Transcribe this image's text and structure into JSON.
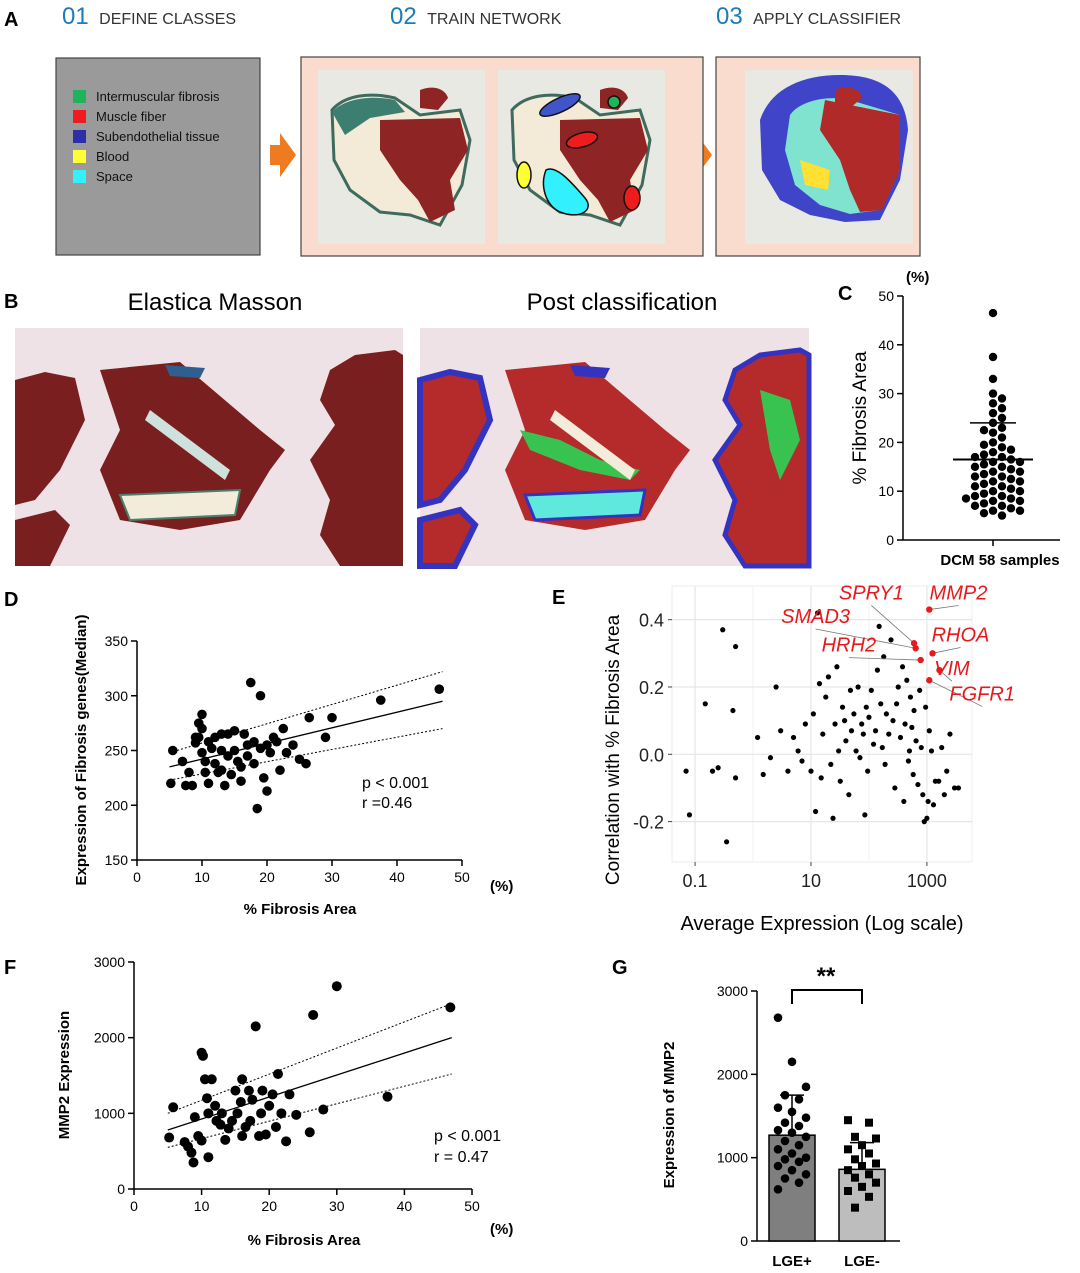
{
  "figure": {
    "panelA": {
      "letter": "A",
      "steps": [
        {
          "num": "01",
          "label": "DEFINE CLASSES"
        },
        {
          "num": "02",
          "label": "TRAIN NETWORK"
        },
        {
          "num": "03",
          "label": "APPLY CLASSIFIER"
        }
      ],
      "legend": [
        {
          "label": "Intermuscular fibrosis",
          "color": "#1fb35a"
        },
        {
          "label": "Muscle fiber",
          "color": "#ee1c1c"
        },
        {
          "label": "Subendothelial tissue",
          "color": "#2e2ea6"
        },
        {
          "label": "Blood",
          "color": "#ffff33"
        },
        {
          "label": "Space",
          "color": "#33f0ff"
        }
      ],
      "accent": "#1a7bbd"
    },
    "panelB": {
      "letter": "B",
      "left_title": "Elastica Masson",
      "right_title": "Post classification"
    },
    "panelC": {
      "letter": "C"
    },
    "panelD": {
      "letter": "D"
    },
    "panelE": {
      "letter": "E"
    },
    "panelF": {
      "letter": "F"
    },
    "panelG": {
      "letter": "G"
    }
  },
  "chart_data": [
    {
      "id": "C",
      "type": "scatter",
      "title": "",
      "ylabel": "% Fibrosis Area",
      "xlabel": "DCM 58 samples",
      "unit": "(%)",
      "ylim": [
        0,
        50
      ],
      "yticks": [
        0,
        10,
        20,
        30,
        40,
        50
      ],
      "mean": 16.5,
      "sd_upper": 24,
      "values": [
        46.5,
        37.5,
        33,
        30,
        29,
        28,
        27,
        26,
        25,
        24,
        23,
        22.5,
        22,
        21,
        20,
        19.5,
        19,
        18.5,
        18,
        17.5,
        17,
        17,
        16.5,
        16,
        16,
        15.5,
        15,
        15,
        14.5,
        14,
        14,
        13.5,
        13,
        13,
        12.5,
        12,
        12,
        11.5,
        11,
        11,
        10.5,
        10,
        10,
        9.5,
        9,
        9,
        8.5,
        8.5,
        8,
        8,
        7.5,
        7,
        7,
        6.5,
        6,
        6,
        5.5,
        5
      ]
    },
    {
      "id": "D",
      "type": "scatter",
      "xlabel": "% Fibrosis Area",
      "ylabel": "Expression of Fibrosis genes(Median)",
      "unit": "(%)",
      "xlim": [
        0,
        50
      ],
      "ylim": [
        150,
        350
      ],
      "xticks": [
        0,
        10,
        20,
        30,
        40,
        50
      ],
      "yticks": [
        150,
        200,
        250,
        300,
        350
      ],
      "annotations": [
        "p < 0.001",
        "r  =0.46"
      ],
      "fit": {
        "x": [
          5,
          47
        ],
        "y": [
          235,
          295
        ]
      },
      "ci_upper": {
        "x": [
          5,
          47
        ],
        "y": [
          248,
          322
        ]
      },
      "ci_lower": {
        "x": [
          5,
          47
        ],
        "y": [
          223,
          270
        ]
      },
      "points": [
        [
          5.5,
          250
        ],
        [
          5.2,
          220
        ],
        [
          7,
          240
        ],
        [
          7.5,
          218
        ],
        [
          8,
          230
        ],
        [
          8.5,
          218
        ],
        [
          9,
          257
        ],
        [
          9,
          262
        ],
        [
          9.5,
          275
        ],
        [
          9.5,
          262
        ],
        [
          10,
          283
        ],
        [
          10,
          270
        ],
        [
          10,
          248
        ],
        [
          10.5,
          240
        ],
        [
          10.5,
          230
        ],
        [
          11,
          220
        ],
        [
          11,
          258
        ],
        [
          11.5,
          252
        ],
        [
          12,
          262
        ],
        [
          12,
          238
        ],
        [
          12.5,
          230
        ],
        [
          13,
          265
        ],
        [
          13,
          250
        ],
        [
          13,
          232
        ],
        [
          13.5,
          218
        ],
        [
          14,
          265
        ],
        [
          14,
          245
        ],
        [
          14.5,
          228
        ],
        [
          15,
          268
        ],
        [
          15,
          250
        ],
        [
          15.5,
          240
        ],
        [
          16,
          235
        ],
        [
          16,
          222
        ],
        [
          16.5,
          265
        ],
        [
          17,
          255
        ],
        [
          17,
          245
        ],
        [
          17.5,
          312
        ],
        [
          18,
          258
        ],
        [
          18,
          238
        ],
        [
          18.5,
          197
        ],
        [
          19,
          300
        ],
        [
          19,
          252
        ],
        [
          19.5,
          225
        ],
        [
          20,
          213
        ],
        [
          20,
          255
        ],
        [
          20.5,
          248
        ],
        [
          21,
          262
        ],
        [
          21.5,
          258
        ],
        [
          22,
          232
        ],
        [
          22.5,
          270
        ],
        [
          23,
          248
        ],
        [
          24,
          255
        ],
        [
          25,
          242
        ],
        [
          26,
          238
        ],
        [
          26.5,
          280
        ],
        [
          29,
          262
        ],
        [
          30,
          280
        ],
        [
          37.5,
          296
        ],
        [
          46.5,
          306
        ]
      ]
    },
    {
      "id": "E",
      "type": "scatter",
      "xlabel": "Average Expression (Log scale)",
      "ylabel": "Correlation with % Fibrosis Area",
      "xscale": "log",
      "xlim": [
        0.04,
        6000
      ],
      "ylim": [
        -0.32,
        0.5
      ],
      "xticks": [
        0.1,
        10,
        1000
      ],
      "xtick_labels": [
        "0.1",
        "10",
        "1000"
      ],
      "yticks": [
        -0.2,
        0,
        0.2,
        0.4
      ],
      "ytick_labels": [
        "-0.2",
        "0.0",
        "0.2",
        "0.4"
      ],
      "highlight_color": "#e8191c",
      "highlight": [
        {
          "gene": "SPRY1",
          "x": 600,
          "y": 0.33,
          "label_x": 110,
          "label_y": 0.46
        },
        {
          "gene": "MMP2",
          "x": 1100,
          "y": 0.43,
          "label_x": 3500,
          "label_y": 0.46
        },
        {
          "gene": "SMAD3",
          "x": 640,
          "y": 0.315,
          "label_x": 12,
          "label_y": 0.39
        },
        {
          "gene": "RHOA",
          "x": 1250,
          "y": 0.3,
          "label_x": 3800,
          "label_y": 0.335
        },
        {
          "gene": "HRH2",
          "x": 780,
          "y": 0.28,
          "label_x": 45,
          "label_y": 0.305
        },
        {
          "gene": "VIM",
          "x": 1650,
          "y": 0.25,
          "label_x": 2700,
          "label_y": 0.235
        },
        {
          "gene": "FGFR1",
          "x": 1100,
          "y": 0.22,
          "label_x": 9000,
          "label_y": 0.16
        }
      ],
      "points": [
        [
          0.07,
          -0.05
        ],
        [
          0.08,
          -0.18
        ],
        [
          0.15,
          0.15
        ],
        [
          0.2,
          -0.05
        ],
        [
          0.25,
          -0.04
        ],
        [
          0.3,
          0.37
        ],
        [
          0.35,
          -0.26
        ],
        [
          0.45,
          0.13
        ],
        [
          0.5,
          -0.07
        ],
        [
          0.5,
          0.32
        ],
        [
          1.2,
          0.05
        ],
        [
          1.5,
          -0.06
        ],
        [
          2,
          -0.01
        ],
        [
          2.5,
          0.2
        ],
        [
          3,
          0.07
        ],
        [
          4,
          -0.05
        ],
        [
          5,
          0.05
        ],
        [
          6,
          0.01
        ],
        [
          7,
          -0.02
        ],
        [
          8,
          0.09
        ],
        [
          10,
          -0.05
        ],
        [
          11,
          0.12
        ],
        [
          12,
          -0.17
        ],
        [
          13,
          0.42
        ],
        [
          14,
          0.21
        ],
        [
          15,
          -0.07
        ],
        [
          16,
          0.06
        ],
        [
          18,
          0.17
        ],
        [
          20,
          0.23
        ],
        [
          22,
          -0.03
        ],
        [
          24,
          -0.19
        ],
        [
          26,
          0.09
        ],
        [
          28,
          0.26
        ],
        [
          30,
          0.01
        ],
        [
          32,
          -0.08
        ],
        [
          35,
          0.14
        ],
        [
          38,
          0.1
        ],
        [
          40,
          0.04
        ],
        [
          45,
          -0.12
        ],
        [
          48,
          0.19
        ],
        [
          50,
          0.07
        ],
        [
          55,
          0.12
        ],
        [
          60,
          0.01
        ],
        [
          65,
          0.2
        ],
        [
          70,
          -0.01
        ],
        [
          75,
          0.09
        ],
        [
          80,
          0.06
        ],
        [
          85,
          -0.18
        ],
        [
          90,
          0.14
        ],
        [
          95,
          -0.05
        ],
        [
          100,
          0.11
        ],
        [
          110,
          0.19
        ],
        [
          120,
          0.03
        ],
        [
          130,
          0.07
        ],
        [
          140,
          0.25
        ],
        [
          150,
          0.38
        ],
        [
          160,
          0.15
        ],
        [
          170,
          0.02
        ],
        [
          180,
          0.29
        ],
        [
          190,
          -0.03
        ],
        [
          200,
          0.12
        ],
        [
          220,
          0.06
        ],
        [
          240,
          0.34
        ],
        [
          260,
          0.1
        ],
        [
          280,
          -0.1
        ],
        [
          300,
          0.15
        ],
        [
          320,
          0.2
        ],
        [
          350,
          0.05
        ],
        [
          380,
          0.26
        ],
        [
          400,
          -0.14
        ],
        [
          420,
          0.09
        ],
        [
          450,
          0.22
        ],
        [
          480,
          -0.02
        ],
        [
          500,
          0.01
        ],
        [
          520,
          0.17
        ],
        [
          550,
          0.08
        ],
        [
          580,
          -0.06
        ],
        [
          600,
          0.13
        ],
        [
          650,
          0.04
        ],
        [
          700,
          -0.09
        ],
        [
          750,
          0.19
        ],
        [
          800,
          0.02
        ],
        [
          850,
          -0.12
        ],
        [
          900,
          -0.2
        ],
        [
          950,
          0.14
        ],
        [
          1000,
          -0.19
        ],
        [
          1050,
          -0.14
        ],
        [
          1100,
          0.07
        ],
        [
          1200,
          0.01
        ],
        [
          1300,
          -0.15
        ],
        [
          1400,
          -0.08
        ],
        [
          1600,
          -0.08
        ],
        [
          1800,
          0.02
        ],
        [
          2000,
          -0.12
        ],
        [
          2200,
          -0.05
        ],
        [
          2500,
          0.06
        ],
        [
          3000,
          -0.1
        ],
        [
          3500,
          -0.1
        ]
      ]
    },
    {
      "id": "F",
      "type": "scatter",
      "xlabel": "% Fibrosis Area",
      "ylabel": "MMP2 Expression",
      "unit": "(%)",
      "xlim": [
        0,
        50
      ],
      "ylim": [
        0,
        3000
      ],
      "xticks": [
        0,
        10,
        20,
        30,
        40,
        50
      ],
      "yticks": [
        0,
        1000,
        2000,
        3000
      ],
      "annotations": [
        "p < 0.001",
        "r  = 0.47"
      ],
      "fit": {
        "x": [
          5,
          47
        ],
        "y": [
          780,
          2000
        ]
      },
      "ci_upper": {
        "x": [
          5,
          47
        ],
        "y": [
          1000,
          2450
        ]
      },
      "ci_lower": {
        "x": [
          5,
          47
        ],
        "y": [
          550,
          1520
        ]
      },
      "points": [
        [
          5.2,
          680
        ],
        [
          5.8,
          1080
        ],
        [
          7.5,
          620
        ],
        [
          8,
          560
        ],
        [
          8.5,
          480
        ],
        [
          8.8,
          350
        ],
        [
          9,
          950
        ],
        [
          9.5,
          700
        ],
        [
          10,
          640
        ],
        [
          10,
          1800
        ],
        [
          10.2,
          1760
        ],
        [
          10.5,
          1450
        ],
        [
          10.8,
          1200
        ],
        [
          11,
          420
        ],
        [
          11,
          1000
        ],
        [
          11.5,
          1450
        ],
        [
          12,
          1100
        ],
        [
          12.2,
          900
        ],
        [
          12.8,
          850
        ],
        [
          13,
          1000
        ],
        [
          13.5,
          650
        ],
        [
          14,
          800
        ],
        [
          14.5,
          900
        ],
        [
          15,
          1300
        ],
        [
          15.3,
          1000
        ],
        [
          15.8,
          1150
        ],
        [
          16,
          1450
        ],
        [
          16,
          700
        ],
        [
          16.5,
          820
        ],
        [
          17,
          1300
        ],
        [
          17.2,
          900
        ],
        [
          17.5,
          1180
        ],
        [
          18,
          2150
        ],
        [
          18.5,
          700
        ],
        [
          18.8,
          1000
        ],
        [
          19,
          1300
        ],
        [
          19.5,
          720
        ],
        [
          20,
          1100
        ],
        [
          20.5,
          1250
        ],
        [
          21,
          820
        ],
        [
          21.3,
          1520
        ],
        [
          21.8,
          1000
        ],
        [
          22.5,
          630
        ],
        [
          23,
          1250
        ],
        [
          24,
          980
        ],
        [
          26,
          750
        ],
        [
          26.5,
          2300
        ],
        [
          28,
          1050
        ],
        [
          30,
          2680
        ],
        [
          37.5,
          1220
        ],
        [
          46.8,
          2400
        ]
      ]
    },
    {
      "id": "G",
      "type": "bar",
      "ylabel": "Expression of MMP2",
      "categories": [
        "LGE+",
        "LGE-"
      ],
      "values": [
        1270,
        860
      ],
      "sd": [
        480,
        320
      ],
      "ylim": [
        0,
        3000
      ],
      "yticks": [
        0,
        1000,
        2000,
        3000
      ],
      "significance": "**",
      "points_lge_pos": [
        2680,
        2150,
        1850,
        1750,
        1700,
        1600,
        1550,
        1480,
        1420,
        1380,
        1330,
        1300,
        1250,
        1200,
        1150,
        1100,
        1050,
        1000,
        980,
        950,
        900,
        850,
        800,
        750,
        700,
        620
      ],
      "points_lge_neg": [
        1450,
        1420,
        1250,
        1230,
        1150,
        1100,
        1050,
        980,
        930,
        900,
        850,
        800,
        760,
        700,
        650,
        600,
        530,
        400
      ]
    }
  ]
}
